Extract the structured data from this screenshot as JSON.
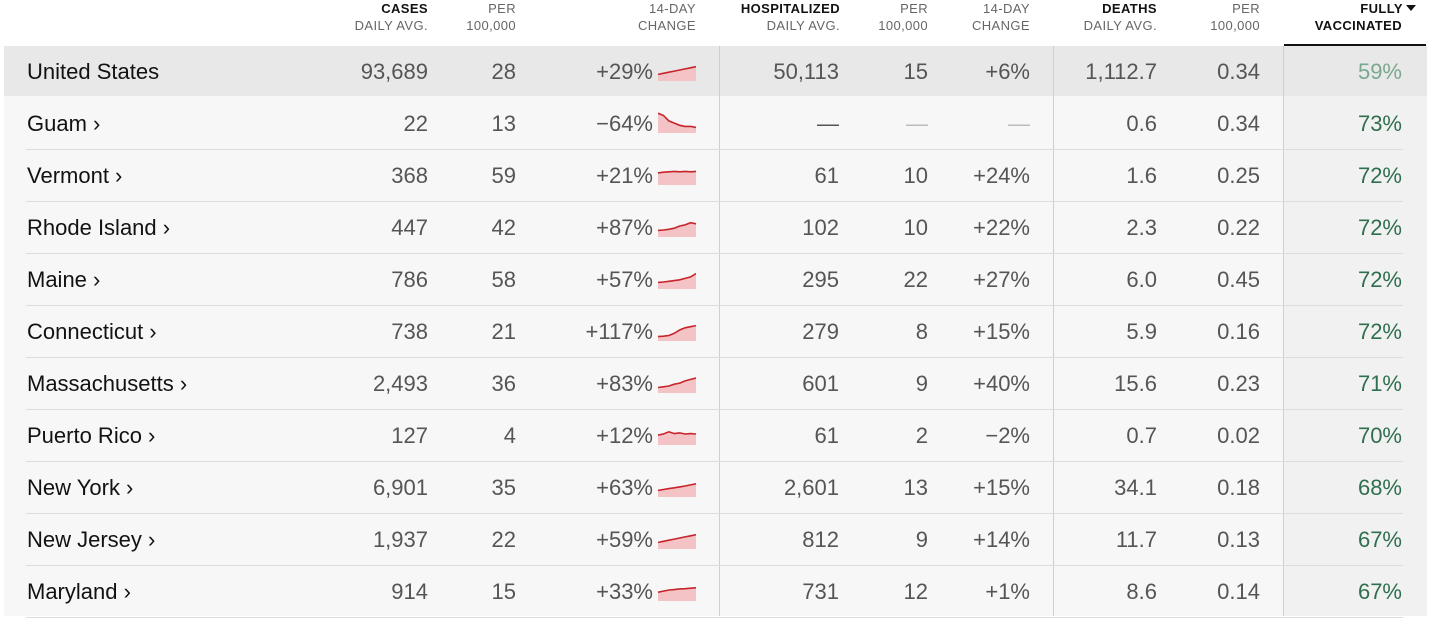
{
  "header": {
    "cases_bold": "CASES",
    "cases_sub": "DAILY AVG.",
    "per_a1": "PER",
    "per_a2": "100,000",
    "change_a1": "14-DAY",
    "change_a2": "CHANGE",
    "hosp_bold": "HOSPITALIZED",
    "hosp_sub": "DAILY AVG.",
    "per_b1": "PER",
    "per_b2": "100,000",
    "change_b1": "14-DAY",
    "change_b2": "CHANGE",
    "deaths_bold": "DEATHS",
    "deaths_sub": "DAILY AVG.",
    "per_c1": "PER",
    "per_c2": "100,000",
    "vax_bold": "FULLY",
    "vax_bold2": "VACCINATED"
  },
  "colors": {
    "spark_line": "#c8242b",
    "spark_fill": "#f3c3c5",
    "vaccinated": "#2f6f4f"
  },
  "rows": [
    {
      "name": "United States",
      "cases": "93,689",
      "cases_per": "28",
      "cases_change": "+29%",
      "trend": [
        0.3,
        0.35,
        0.4,
        0.45,
        0.5,
        0.55,
        0.6,
        0.65
      ],
      "hosp": "50,113",
      "hosp_per": "15",
      "hosp_change": "+6%",
      "deaths": "1,112.7",
      "deaths_per": "0.34",
      "vax": "59%"
    },
    {
      "name": "Guam ›",
      "cases": "22",
      "cases_per": "13",
      "cases_change": "−64%",
      "trend": [
        0.9,
        0.8,
        0.55,
        0.45,
        0.35,
        0.3,
        0.3,
        0.25
      ],
      "hosp": "—",
      "hosp_per": "—",
      "hosp_change": "—",
      "deaths": "0.6",
      "deaths_per": "0.34",
      "vax": "73%"
    },
    {
      "name": "Vermont ›",
      "cases": "368",
      "cases_per": "59",
      "cases_change": "+21%",
      "trend": [
        0.55,
        0.58,
        0.6,
        0.62,
        0.6,
        0.62,
        0.6,
        0.62
      ],
      "hosp": "61",
      "hosp_per": "10",
      "hosp_change": "+24%",
      "deaths": "1.6",
      "deaths_per": "0.25",
      "vax": "72%"
    },
    {
      "name": "Rhode Island ›",
      "cases": "447",
      "cases_per": "42",
      "cases_change": "+87%",
      "trend": [
        0.3,
        0.32,
        0.35,
        0.4,
        0.5,
        0.55,
        0.65,
        0.6
      ],
      "hosp": "102",
      "hosp_per": "10",
      "hosp_change": "+22%",
      "deaths": "2.3",
      "deaths_per": "0.22",
      "vax": "72%"
    },
    {
      "name": "Maine ›",
      "cases": "786",
      "cases_per": "58",
      "cases_change": "+57%",
      "trend": [
        0.3,
        0.32,
        0.35,
        0.38,
        0.42,
        0.48,
        0.55,
        0.7
      ],
      "hosp": "295",
      "hosp_per": "22",
      "hosp_change": "+27%",
      "deaths": "6.0",
      "deaths_per": "0.45",
      "vax": "72%"
    },
    {
      "name": "Connecticut ›",
      "cases": "738",
      "cases_per": "21",
      "cases_change": "+117%",
      "trend": [
        0.2,
        0.22,
        0.25,
        0.35,
        0.5,
        0.6,
        0.65,
        0.7
      ],
      "hosp": "279",
      "hosp_per": "8",
      "hosp_change": "+15%",
      "deaths": "5.9",
      "deaths_per": "0.16",
      "vax": "72%"
    },
    {
      "name": "Massachusetts ›",
      "cases": "2,493",
      "cases_per": "36",
      "cases_change": "+83%",
      "trend": [
        0.25,
        0.28,
        0.32,
        0.4,
        0.45,
        0.55,
        0.62,
        0.68
      ],
      "hosp": "601",
      "hosp_per": "9",
      "hosp_change": "+40%",
      "deaths": "15.6",
      "deaths_per": "0.23",
      "vax": "71%"
    },
    {
      "name": "Puerto Rico ›",
      "cases": "127",
      "cases_per": "4",
      "cases_change": "+12%",
      "trend": [
        0.45,
        0.5,
        0.6,
        0.52,
        0.55,
        0.5,
        0.52,
        0.5
      ],
      "hosp": "61",
      "hosp_per": "2",
      "hosp_change": "−2%",
      "deaths": "0.7",
      "deaths_per": "0.02",
      "vax": "70%"
    },
    {
      "name": "New York ›",
      "cases": "6,901",
      "cases_per": "35",
      "cases_change": "+63%",
      "trend": [
        0.3,
        0.34,
        0.38,
        0.42,
        0.46,
        0.5,
        0.55,
        0.6
      ],
      "hosp": "2,601",
      "hosp_per": "13",
      "hosp_change": "+15%",
      "deaths": "34.1",
      "deaths_per": "0.18",
      "vax": "68%"
    },
    {
      "name": "New Jersey ›",
      "cases": "1,937",
      "cases_per": "22",
      "cases_change": "+59%",
      "trend": [
        0.3,
        0.35,
        0.4,
        0.45,
        0.5,
        0.55,
        0.6,
        0.65
      ],
      "hosp": "812",
      "hosp_per": "9",
      "hosp_change": "+14%",
      "deaths": "11.7",
      "deaths_per": "0.13",
      "vax": "67%"
    },
    {
      "name": "Maryland ›",
      "cases": "914",
      "cases_per": "15",
      "cases_change": "+33%",
      "trend": [
        0.4,
        0.45,
        0.5,
        0.52,
        0.55,
        0.56,
        0.58,
        0.6
      ],
      "hosp": "731",
      "hosp_per": "12",
      "hosp_change": "+1%",
      "deaths": "8.6",
      "deaths_per": "0.14",
      "vax": "67%"
    }
  ]
}
